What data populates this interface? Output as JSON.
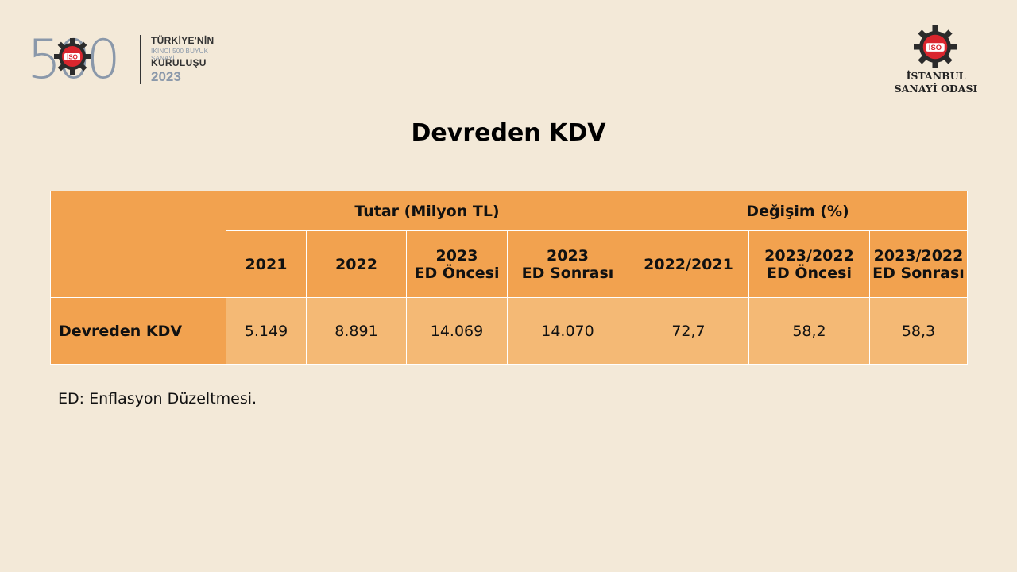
{
  "logo_left": {
    "numeral": "500",
    "line1": "TÜRKİYE'NİN",
    "line2": "İKİNCİ 500 BÜYÜK SANAYİ",
    "line3": "KURULUŞU",
    "year": "2023",
    "emblem_text": "İSO"
  },
  "logo_right": {
    "emblem_text": "İSO",
    "line1": "İSTANBUL",
    "line2": "SANAYİ ODASI"
  },
  "title": "Devreden KDV",
  "table": {
    "group_headers": [
      "Tutar (Milyon TL)",
      "Değişim (%)"
    ],
    "columns": [
      [
        "2021"
      ],
      [
        "2022"
      ],
      [
        "2023",
        "ED Öncesi"
      ],
      [
        "2023",
        "ED Sonrası"
      ],
      [
        "2022/2021"
      ],
      [
        "2023/2022",
        "ED Öncesi"
      ],
      [
        "2023/2022",
        "ED Sonrası"
      ]
    ],
    "row_label": "Devreden KDV",
    "values": [
      "5.149",
      "8.891",
      "14.069",
      "14.070",
      "72,7",
      "58,2",
      "58,3"
    ]
  },
  "note": "ED: Enflasyon Düzeltmesi.",
  "colors": {
    "background": "#f3e9d8",
    "header_fill": "#f2a24f",
    "value_fill": "#f4b975",
    "emblem_red": "#d9262e",
    "emblem_gear": "#2b2b2b",
    "logo_grey": "#8a98aa"
  }
}
